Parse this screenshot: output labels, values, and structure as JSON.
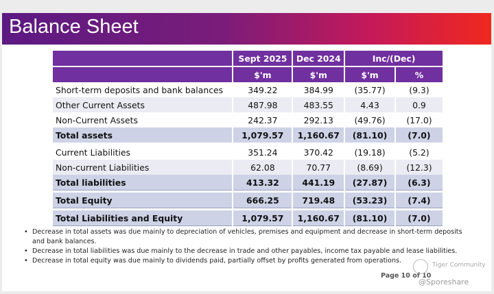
{
  "title": "Balance Sheet",
  "columns": {
    "sept_2025": "Sept 2025",
    "dec_2024": "Dec 2024",
    "inc_dec": "Inc/(Dec)",
    "unit_sept": "$'m",
    "unit_dec": "$'m",
    "unit_inc": "$'m",
    "unit_pct": "%"
  },
  "rows": [
    {
      "label": "Short-term deposits and bank balances",
      "sept": "349.22",
      "dec": "384.99",
      "inc": "(35.77)",
      "pct": "(9.3)"
    },
    {
      "label": "Other Current Assets",
      "sept": "487.98",
      "dec": "483.55",
      "inc": "4.43",
      "pct": "0.9"
    },
    {
      "label": "Non-Current Assets",
      "sept": "242.37",
      "dec": "292.13",
      "inc": "(49.76)",
      "pct": "(17.0)"
    },
    {
      "label": "Total assets",
      "sept": "1,079.57",
      "dec": "1,160.67",
      "inc": "(81.10)",
      "pct": "(7.0)"
    },
    {
      "label": "Current Liabilities",
      "sept": "351.24",
      "dec": "370.42",
      "inc": "(19.18)",
      "pct": "(5.2)"
    },
    {
      "label": "Non-current Liabilities",
      "sept": "62.08",
      "dec": "70.77",
      "inc": "(8.69)",
      "pct": "(12.3)"
    },
    {
      "label": "Total liabilities",
      "sept": "413.32",
      "dec": "441.19",
      "inc": "(27.87)",
      "pct": "(6.3)"
    },
    {
      "label": "Total Equity",
      "sept": "666.25",
      "dec": "719.48",
      "inc": "(53.23)",
      "pct": "(7.4)"
    },
    {
      "label": "Total Liabilities and Equity",
      "sept": "1,079.57",
      "dec": "1,160.67",
      "inc": "(81.10)",
      "pct": "(7.0)"
    }
  ],
  "notes": [
    "Decrease in total assets was due mainly to depreciation of vehicles, premises and equipment and decrease in short-term deposits and bank balances.",
    "Decrease in total liabilities was due mainly to the decrease in trade and other payables, income tax payable and lease liabilities.",
    "Decrease in total equity was due mainly to dividends paid, partially offset by profits generated from operations."
  ],
  "page_number": "Page 10 of 10",
  "watermark": {
    "community": "Tiger Community",
    "handle": "@Sporeshare"
  },
  "colors": {
    "header_purple": "#7030a0",
    "total_row": "#cdd2e6",
    "light_row": "#ebebf3"
  }
}
